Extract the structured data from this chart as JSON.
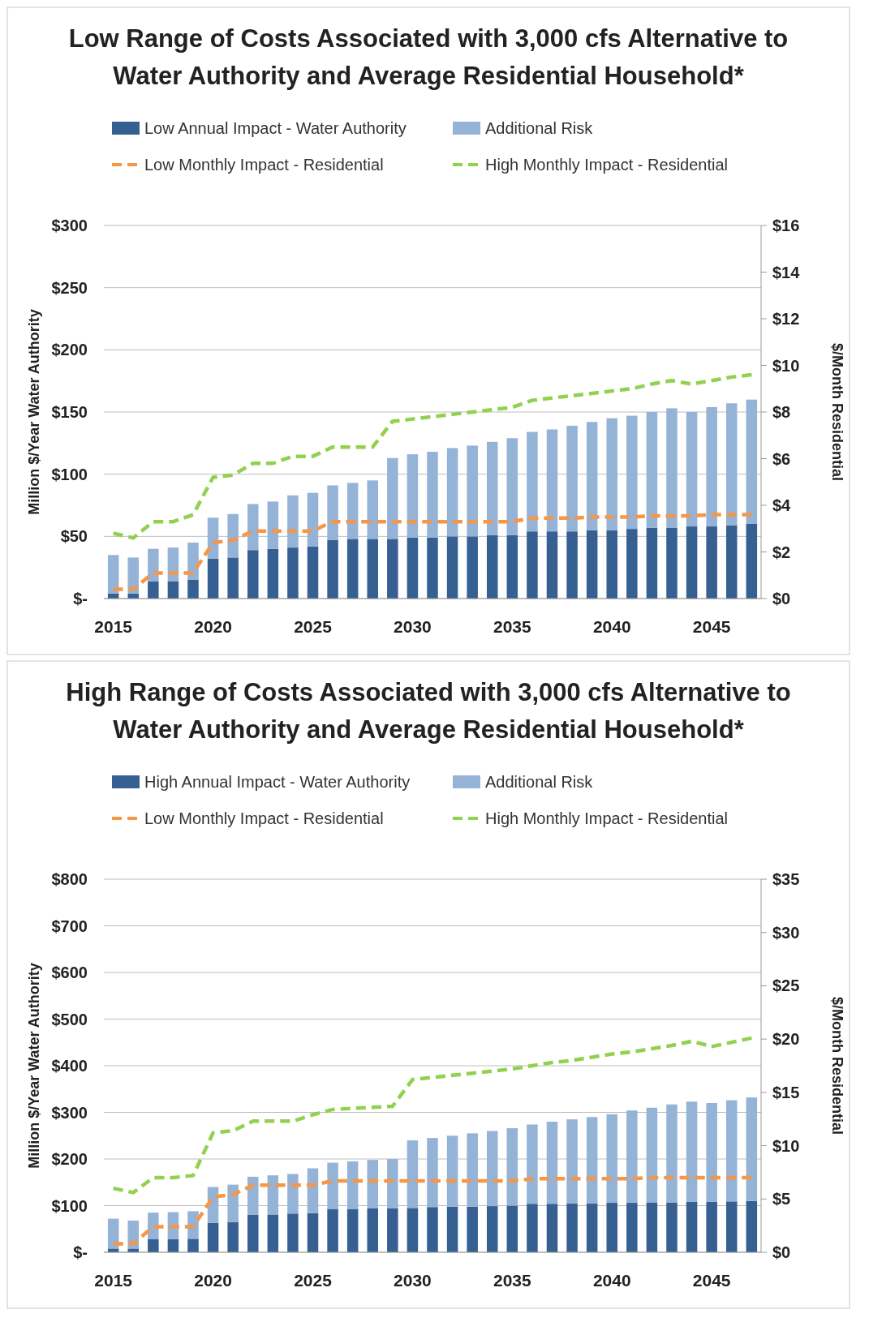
{
  "chart_data": [
    {
      "type": "bar",
      "title": "Low Range of Costs Associated with 3,000 cfs Alternative to Water Authority and Average Residential Household*",
      "ylabel": "Million $/Year Water Authority",
      "y2label": "$/Month Residential",
      "stacked": true,
      "legend": "top",
      "grid": "y",
      "marker": "none",
      "categories": [
        "2015",
        null,
        null,
        null,
        null,
        "2020",
        null,
        null,
        null,
        null,
        "2025",
        null,
        null,
        null,
        null,
        "2030",
        null,
        null,
        null,
        null,
        "2035",
        null,
        null,
        null,
        null,
        "2040",
        null,
        null,
        null,
        null,
        "2045",
        null,
        null
      ],
      "ylim": [
        0,
        300
      ],
      "yticks": [
        {
          "value": 0,
          "label": "$-"
        },
        {
          "value": 50,
          "label": "$50"
        },
        {
          "value": 100,
          "label": "$100"
        },
        {
          "value": 150,
          "label": "$150"
        },
        {
          "value": 200,
          "label": "$200"
        },
        {
          "value": 250,
          "label": "$250"
        },
        {
          "value": 300,
          "label": "$300"
        }
      ],
      "y2lim": [
        0,
        16
      ],
      "y2ticks": [
        {
          "value": 0,
          "label": "$0"
        },
        {
          "value": 2,
          "label": "$2"
        },
        {
          "value": 4,
          "label": "$4"
        },
        {
          "value": 6,
          "label": "$6"
        },
        {
          "value": 8,
          "label": "$8"
        },
        {
          "value": 10,
          "label": "$10"
        },
        {
          "value": 12,
          "label": "$12"
        },
        {
          "value": 14,
          "label": "$14"
        },
        {
          "value": 16,
          "label": "$16"
        }
      ],
      "series": [
        {
          "name": "Low Annual Impact - Water Authority",
          "color": "#376092",
          "values": [
            4,
            4,
            14,
            14,
            15,
            32,
            33,
            39,
            40,
            41,
            42,
            47,
            48,
            48,
            48,
            49,
            49,
            50,
            50,
            51,
            51,
            54,
            54,
            54,
            55,
            55,
            56,
            57,
            57,
            58,
            58,
            59,
            60
          ]
        },
        {
          "name": "Additional Risk",
          "color": "#95b3d7",
          "values": [
            31,
            29,
            26,
            27,
            30,
            33,
            35,
            37,
            38,
            42,
            43,
            44,
            45,
            47,
            65,
            67,
            69,
            71,
            73,
            75,
            78,
            80,
            82,
            85,
            87,
            90,
            91,
            93,
            96,
            92,
            96,
            98,
            100
          ]
        },
        {
          "name": "Low Monthly Impact - Residential",
          "type": "line",
          "axis": "y2",
          "line_style": "dashed",
          "color": "#f79646",
          "values": [
            0.4,
            0.4,
            1.1,
            1.1,
            1.1,
            2.4,
            2.5,
            2.9,
            2.9,
            2.9,
            2.9,
            3.3,
            3.3,
            3.3,
            3.3,
            3.3,
            3.3,
            3.3,
            3.3,
            3.3,
            3.3,
            3.45,
            3.45,
            3.45,
            3.5,
            3.5,
            3.5,
            3.55,
            3.55,
            3.55,
            3.6,
            3.6,
            3.6
          ]
        },
        {
          "name": "High Monthly Impact - Residential",
          "type": "line",
          "axis": "y2",
          "line_style": "dashed",
          "color": "#92d050",
          "values": [
            2.8,
            2.6,
            3.3,
            3.3,
            3.6,
            5.2,
            5.3,
            5.8,
            5.8,
            6.1,
            6.1,
            6.5,
            6.5,
            6.5,
            7.6,
            7.7,
            7.8,
            7.9,
            8.0,
            8.1,
            8.2,
            8.5,
            8.6,
            8.7,
            8.8,
            8.9,
            9.0,
            9.2,
            9.35,
            9.2,
            9.35,
            9.5,
            9.6
          ]
        }
      ]
    },
    {
      "type": "bar",
      "title": "High Range of Costs Associated with 3,000 cfs Alternative to Water Authority and Average Residential Household*",
      "ylabel": "Million $/Year Water Authority",
      "y2label": "$/Month Residential",
      "stacked": true,
      "legend": "top",
      "grid": "y",
      "marker": "none",
      "categories": [
        "2015",
        null,
        null,
        null,
        null,
        "2020",
        null,
        null,
        null,
        null,
        "2025",
        null,
        null,
        null,
        null,
        "2030",
        null,
        null,
        null,
        null,
        "2035",
        null,
        null,
        null,
        null,
        "2040",
        null,
        null,
        null,
        null,
        "2045",
        null,
        null
      ],
      "ylim": [
        0,
        800
      ],
      "yticks": [
        {
          "value": 0,
          "label": "$-"
        },
        {
          "value": 100,
          "label": "$100"
        },
        {
          "value": 200,
          "label": "$200"
        },
        {
          "value": 300,
          "label": "$300"
        },
        {
          "value": 400,
          "label": "$400"
        },
        {
          "value": 500,
          "label": "$500"
        },
        {
          "value": 600,
          "label": "$600"
        },
        {
          "value": 700,
          "label": "$700"
        },
        {
          "value": 800,
          "label": "$800"
        }
      ],
      "y2lim": [
        0,
        35
      ],
      "y2ticks": [
        {
          "value": 0,
          "label": "$0"
        },
        {
          "value": 5,
          "label": "$5"
        },
        {
          "value": 10,
          "label": "$10"
        },
        {
          "value": 15,
          "label": "$15"
        },
        {
          "value": 20,
          "label": "$20"
        },
        {
          "value": 25,
          "label": "$25"
        },
        {
          "value": 30,
          "label": "$30"
        },
        {
          "value": 35,
          "label": "$35"
        }
      ],
      "series": [
        {
          "name": "High Annual Impact - Water Authority",
          "color": "#376092",
          "values": [
            8,
            8,
            28,
            28,
            29,
            63,
            65,
            80,
            81,
            83,
            84,
            93,
            93,
            94,
            94,
            95,
            97,
            98,
            98,
            99,
            100,
            104,
            104,
            105,
            105,
            106,
            106,
            107,
            107,
            108,
            108,
            109,
            110
          ]
        },
        {
          "name": "Additional Risk",
          "color": "#95b3d7",
          "values": [
            64,
            60,
            57,
            58,
            59,
            77,
            80,
            82,
            84,
            85,
            96,
            99,
            102,
            104,
            106,
            145,
            148,
            152,
            157,
            161,
            166,
            170,
            176,
            180,
            185,
            190,
            198,
            203,
            210,
            215,
            212,
            217,
            222
          ]
        },
        {
          "name": "Low Monthly Impact - Residential",
          "type": "line",
          "axis": "y2",
          "line_style": "dashed",
          "color": "#f79646",
          "values": [
            0.8,
            0.8,
            2.4,
            2.4,
            2.4,
            5.2,
            5.4,
            6.3,
            6.3,
            6.3,
            6.3,
            6.7,
            6.7,
            6.7,
            6.7,
            6.7,
            6.7,
            6.7,
            6.7,
            6.7,
            6.7,
            6.9,
            6.9,
            6.9,
            6.9,
            6.9,
            6.9,
            7.0,
            7.0,
            7.0,
            7.0,
            7.0,
            7.0
          ]
        },
        {
          "name": "High Monthly Impact - Residential",
          "type": "line",
          "axis": "y2",
          "line_style": "dashed",
          "color": "#92d050",
          "values": [
            6.0,
            5.6,
            7.0,
            7.0,
            7.2,
            11.2,
            11.4,
            12.3,
            12.3,
            12.3,
            12.9,
            13.4,
            13.5,
            13.6,
            13.7,
            16.2,
            16.4,
            16.6,
            16.8,
            17.0,
            17.2,
            17.5,
            17.8,
            18.0,
            18.3,
            18.6,
            18.8,
            19.1,
            19.4,
            19.8,
            19.3,
            19.7,
            20.1
          ]
        }
      ]
    }
  ]
}
